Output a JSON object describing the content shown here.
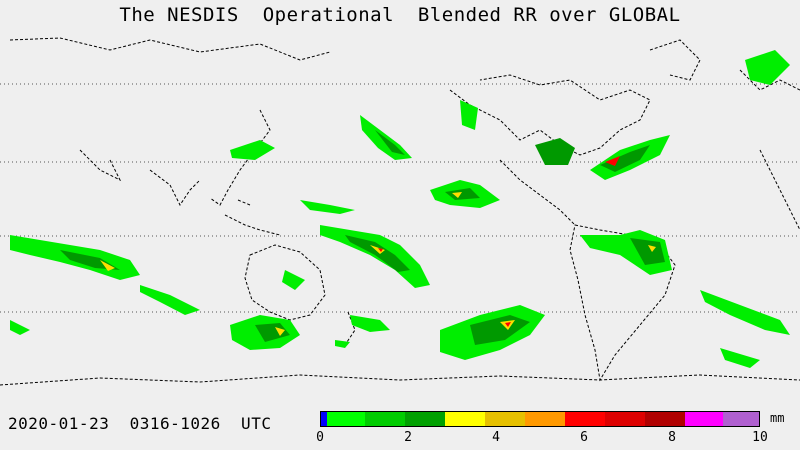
{
  "title": "The NESDIS  Operational  Blended RR over GLOBAL",
  "footer": {
    "date_range": "2020-01-23  0316-1026  UTC"
  },
  "colorbar": {
    "unit": "mm",
    "ticks": [
      "0",
      "2",
      "4",
      "6",
      "8",
      "10"
    ],
    "colors": [
      "#0000ff",
      "#00ff00",
      "#00cc00",
      "#00a000",
      "#ffff00",
      "#e6c000",
      "#ff9900",
      "#ff0000",
      "#dd0000",
      "#b00000",
      "#ff00ff",
      "#b060d0"
    ]
  },
  "map": {
    "background": "#efefef",
    "coastline_color": "#000000",
    "gridline_style": "dotted",
    "precip_colors": {
      "light": "#00ee00",
      "medium": "#009900",
      "heavy": "#ffdd00",
      "very_heavy": "#ff0000"
    }
  }
}
